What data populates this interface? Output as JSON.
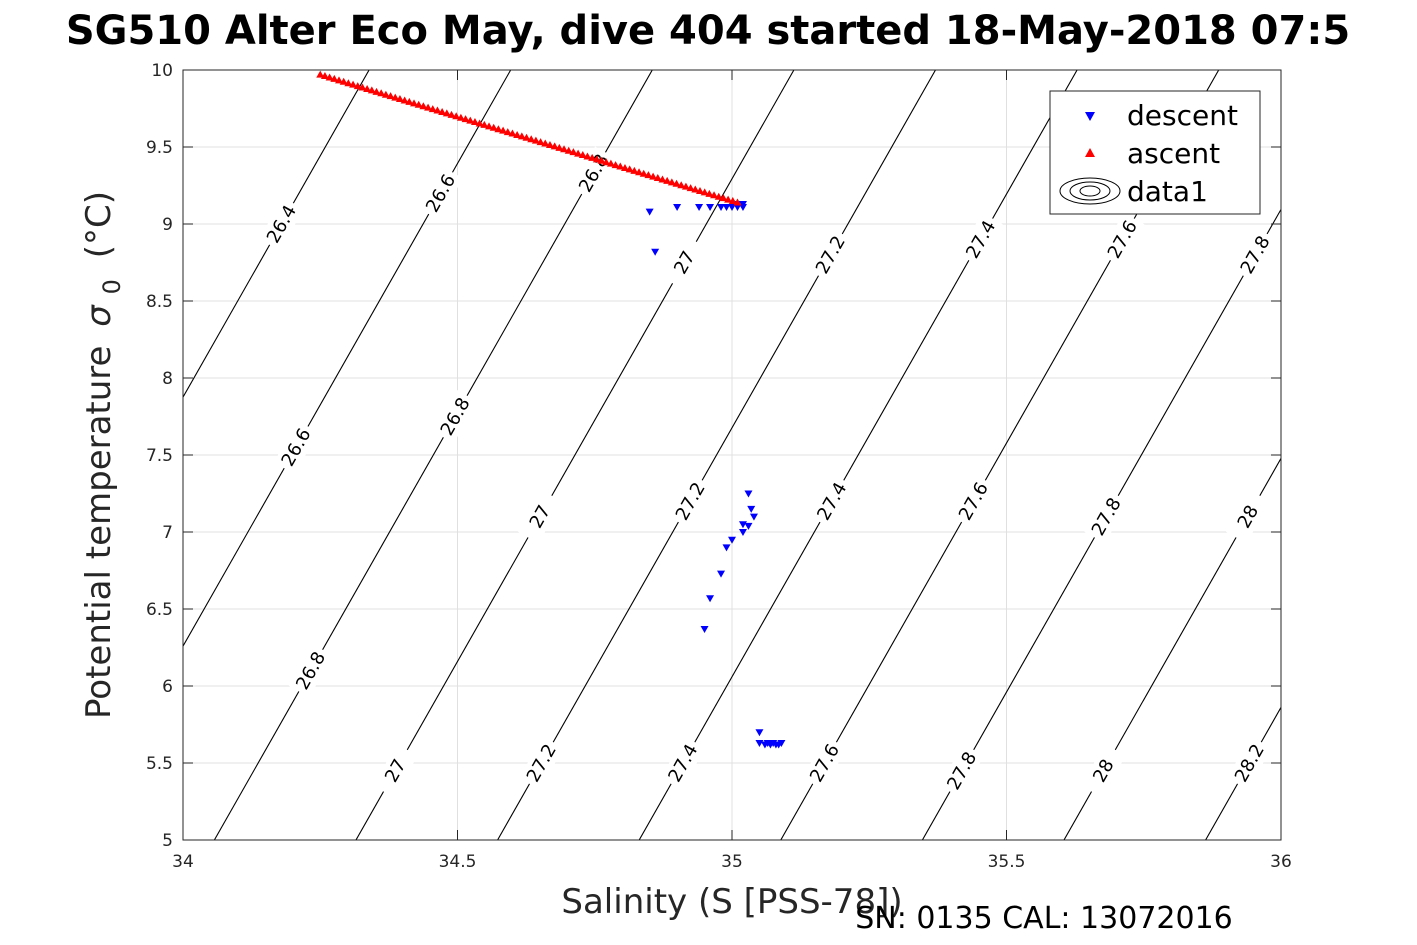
{
  "chart_data": {
    "type": "scatter",
    "title": "SG510 Alter Eco May, dive 404 started 18-May-2018 07:5",
    "xlabel": "Salinity (S [PSS-78])",
    "ylabel": "Potential temperature",
    "ylabel_symbol": "σ",
    "ylabel_subscript": "0",
    "ylabel_unit": "(°C)",
    "xlim": [
      34,
      36
    ],
    "ylim": [
      5,
      10
    ],
    "xticks": [
      34,
      34.5,
      35,
      35.5,
      36
    ],
    "xtick_labels": [
      "34",
      "34.5",
      "35",
      "35.5",
      "36"
    ],
    "yticks": [
      5,
      5.5,
      6,
      6.5,
      7,
      7.5,
      8,
      8.5,
      9,
      9.5,
      10
    ],
    "ytick_labels": [
      "5",
      "5.5",
      "6",
      "6.5",
      "7",
      "7.5",
      "8",
      "8.5",
      "9",
      "9.5",
      "10"
    ],
    "grid": true,
    "legend_position": "top-right",
    "legend": [
      {
        "label": "descent",
        "marker": "triangle-down",
        "color": "#0000ff"
      },
      {
        "label": "ascent",
        "marker": "triangle-up",
        "color": "#ff0000"
      },
      {
        "label": "data1",
        "marker": "contour",
        "color": "#000000"
      }
    ],
    "series": [
      {
        "name": "descent",
        "color": "#0000ff",
        "marker": "triangle-down",
        "points": [
          [
            34.85,
            9.08
          ],
          [
            34.86,
            8.82
          ],
          [
            34.9,
            9.11
          ],
          [
            34.94,
            9.11
          ],
          [
            34.96,
            9.11
          ],
          [
            34.98,
            9.11
          ],
          [
            34.99,
            9.11
          ],
          [
            35.0,
            9.11
          ],
          [
            35.01,
            9.11
          ],
          [
            35.02,
            9.11
          ],
          [
            35.02,
            9.13
          ],
          [
            35.01,
            9.13
          ],
          [
            34.95,
            6.37
          ],
          [
            34.96,
            6.57
          ],
          [
            34.98,
            6.73
          ],
          [
            34.99,
            6.9
          ],
          [
            35.0,
            6.95
          ],
          [
            35.02,
            7.0
          ],
          [
            35.02,
            7.05
          ],
          [
            35.03,
            7.04
          ],
          [
            35.04,
            7.1
          ],
          [
            35.035,
            7.15
          ],
          [
            35.03,
            7.25
          ],
          [
            35.05,
            5.7
          ],
          [
            35.05,
            5.63
          ],
          [
            35.06,
            5.62
          ],
          [
            35.07,
            5.62
          ],
          [
            35.08,
            5.62
          ],
          [
            35.09,
            5.63
          ],
          [
            35.065,
            5.63
          ],
          [
            35.075,
            5.63
          ],
          [
            35.085,
            5.62
          ]
        ]
      },
      {
        "name": "ascent",
        "color": "#ff0000",
        "marker": "triangle-up",
        "from": [
          34.25,
          9.97
        ],
        "to": [
          35.01,
          9.14
        ],
        "count": 90
      }
    ],
    "contours": [
      {
        "level": 26.4,
        "label": "26.4",
        "label_pos": [
          34.08,
          9.0
        ]
      },
      {
        "level": 26.6,
        "label": "26.6",
        "label_pos": [
          34.38,
          9.2
        ],
        "label_pos2": [
          34.08,
          7.55
        ]
      },
      {
        "level": 26.8,
        "label": "26.8",
        "label_pos": [
          34.67,
          9.33
        ],
        "label_pos2": [
          34.34,
          7.75
        ],
        "label_pos3": [
          34.06,
          6.1
        ]
      },
      {
        "level": 27.0,
        "label": "27",
        "label_pos": [
          34.81,
          8.75
        ],
        "label_pos2": [
          34.48,
          7.1
        ],
        "label_pos3": [
          34.21,
          5.45
        ]
      },
      {
        "level": 27.2,
        "label": "27.2",
        "label_pos": [
          35.06,
          8.8
        ],
        "label_pos2": [
          34.73,
          7.2
        ],
        "label_pos3": [
          34.46,
          5.5
        ]
      },
      {
        "level": 27.4,
        "label": "27.4",
        "label_pos": [
          35.31,
          8.9
        ],
        "label_pos2": [
          35.0,
          7.2
        ],
        "label_pos3": [
          34.72,
          5.5
        ]
      },
      {
        "level": 27.6,
        "label": "27.6",
        "label_pos": [
          35.57,
          8.9
        ],
        "label_pos2": [
          35.27,
          7.2
        ],
        "label_pos3": [
          34.97,
          5.5
        ]
      },
      {
        "level": 27.8,
        "label": "27.8",
        "label_pos": [
          35.81,
          8.8
        ],
        "label_pos2": [
          35.51,
          7.1
        ],
        "label_pos3": [
          35.21,
          5.45
        ]
      },
      {
        "level": 28.0,
        "label": "28",
        "label_pos": [
          35.76,
          7.1
        ],
        "label_pos2": [
          35.47,
          5.45
        ]
      },
      {
        "level": 28.2,
        "label": "28.2",
        "label_pos": [
          35.74,
          5.5
        ]
      }
    ],
    "footer": "SN: 0135  CAL: 13072016"
  }
}
